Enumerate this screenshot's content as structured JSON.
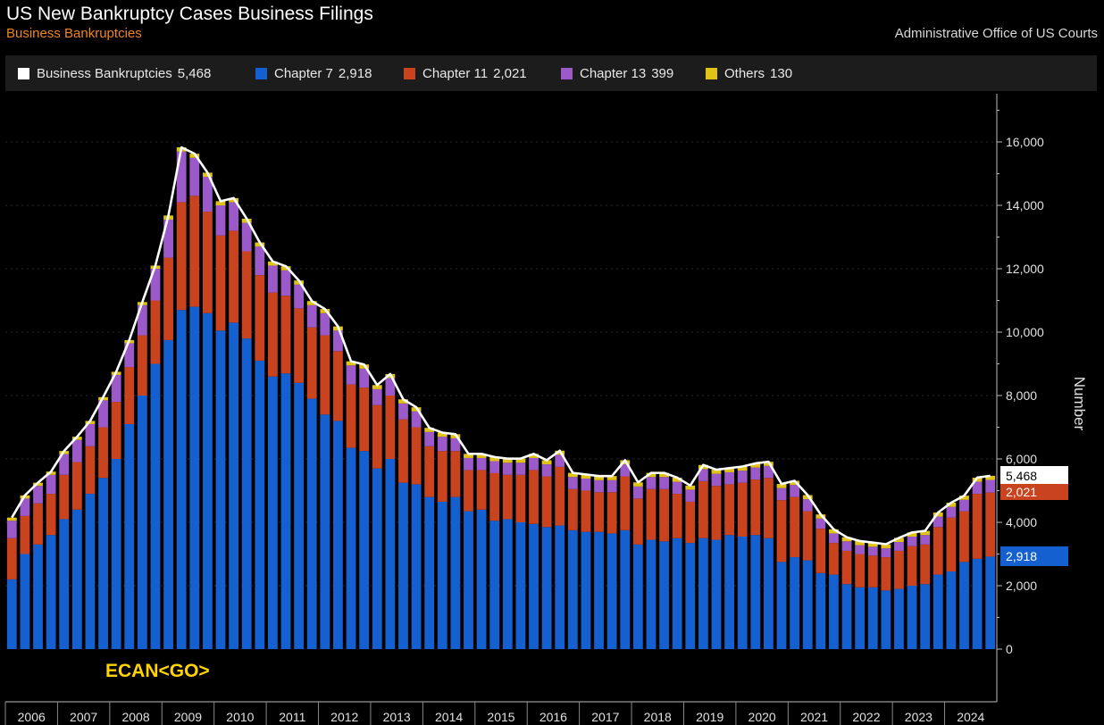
{
  "header": {
    "title": "US New Bankruptcy Cases Business Filings",
    "subtitle": "Business Bankruptcies",
    "source": "Administrative Office of US Courts"
  },
  "legend": [
    {
      "label": "Business Bankruptcies",
      "value": "5,468",
      "color": "#ffffff"
    },
    {
      "label": "Chapter 7",
      "value": "2,918",
      "color": "#1560d0"
    },
    {
      "label": "Chapter 11",
      "value": "2,021",
      "color": "#c8431e"
    },
    {
      "label": "Chapter 13",
      "value": "399",
      "color": "#9b59c9"
    },
    {
      "label": "Others",
      "value": "130",
      "color": "#e0c316"
    }
  ],
  "ticker": "ECAN<GO>",
  "tags": {
    "total": "5,468",
    "chapter11": "2,021",
    "chapter7": "2,918"
  },
  "chart_data": {
    "type": "bar",
    "stacked": true,
    "ylabel": "Number",
    "ylim": [
      0,
      17500
    ],
    "yticks": [
      0,
      2000,
      4000,
      6000,
      8000,
      10000,
      12000,
      14000,
      16000
    ],
    "ytick_labels": [
      "0",
      "2,000",
      "4,000",
      "6,000",
      "8,000",
      "10,000",
      "12,000",
      "14,000",
      "16,000"
    ],
    "xtick_labels": [
      "2006",
      "2007",
      "2008",
      "2009",
      "2010",
      "2011",
      "2012",
      "2013",
      "2014",
      "2015",
      "2016",
      "2017",
      "2018",
      "2019",
      "2020",
      "2021",
      "2022",
      "2023",
      "2024"
    ],
    "x_start": "2006-Q1",
    "frequency": "quarterly",
    "series": [
      {
        "name": "Chapter 7",
        "color": "#1560d0",
        "values": [
          2200,
          3000,
          3300,
          3600,
          4100,
          4400,
          4900,
          5400,
          6000,
          7100,
          8000,
          9000,
          9750,
          10700,
          10800,
          10600,
          10050,
          10300,
          9800,
          9100,
          8600,
          8700,
          8400,
          7900,
          7400,
          7200,
          6350,
          6250,
          5700,
          6000,
          5250,
          5200,
          4800,
          4650,
          4800,
          4350,
          4400,
          4050,
          4100,
          4000,
          3950,
          3850,
          3900,
          3750,
          3700,
          3700,
          3650,
          3750,
          3300,
          3450,
          3400,
          3500,
          3350,
          3500,
          3450,
          3600,
          3550,
          3600,
          3500,
          2750,
          2900,
          2800,
          2400,
          2350,
          2050,
          1950,
          1950,
          1850,
          1900,
          2000,
          2050,
          2350,
          2450,
          2750,
          2850,
          2918
        ]
      },
      {
        "name": "Chapter 11",
        "color": "#c8431e",
        "values": [
          1300,
          1200,
          1300,
          1300,
          1400,
          1500,
          1500,
          1600,
          1800,
          1800,
          1900,
          2000,
          2600,
          3400,
          3500,
          3200,
          3000,
          2900,
          2750,
          2700,
          2650,
          2450,
          2350,
          2250,
          2500,
          2200,
          2000,
          2000,
          2000,
          2000,
          2000,
          1800,
          1600,
          1600,
          1450,
          1300,
          1250,
          1500,
          1400,
          1500,
          1700,
          1600,
          1850,
          1300,
          1300,
          1250,
          1300,
          1700,
          1450,
          1600,
          1650,
          1400,
          1300,
          1800,
          1700,
          1600,
          1700,
          1750,
          1900,
          1950,
          1900,
          1550,
          1400,
          1000,
          1050,
          1050,
          1000,
          1050,
          1200,
          1250,
          1250,
          1500,
          1700,
          1600,
          2050,
          2021
        ]
      },
      {
        "name": "Chapter 13",
        "color": "#9b59c9",
        "values": [
          550,
          550,
          550,
          600,
          650,
          700,
          700,
          850,
          850,
          750,
          950,
          1000,
          1200,
          1600,
          1200,
          1100,
          950,
          900,
          900,
          900,
          850,
          800,
          750,
          700,
          700,
          650,
          600,
          600,
          500,
          550,
          500,
          500,
          450,
          450,
          400,
          380,
          380,
          380,
          380,
          380,
          380,
          380,
          380,
          380,
          380,
          380,
          380,
          380,
          380,
          380,
          380,
          380,
          380,
          380,
          380,
          380,
          380,
          380,
          380,
          380,
          380,
          380,
          320,
          300,
          300,
          280,
          280,
          280,
          280,
          300,
          300,
          330,
          340,
          360,
          380,
          399
        ]
      },
      {
        "name": "Others",
        "color": "#e0c316",
        "values": [
          100,
          100,
          100,
          100,
          100,
          100,
          100,
          100,
          100,
          100,
          100,
          100,
          130,
          130,
          130,
          130,
          130,
          130,
          130,
          130,
          130,
          130,
          130,
          130,
          130,
          130,
          130,
          130,
          130,
          130,
          130,
          130,
          130,
          130,
          130,
          130,
          130,
          130,
          130,
          130,
          130,
          130,
          130,
          130,
          130,
          130,
          130,
          130,
          130,
          130,
          130,
          130,
          130,
          130,
          130,
          130,
          130,
          130,
          130,
          130,
          130,
          130,
          130,
          130,
          130,
          130,
          130,
          130,
          130,
          130,
          130,
          130,
          130,
          130,
          130,
          130
        ]
      }
    ],
    "total": {
      "name": "Business Bankruptcies",
      "color": "#ffffff"
    }
  }
}
